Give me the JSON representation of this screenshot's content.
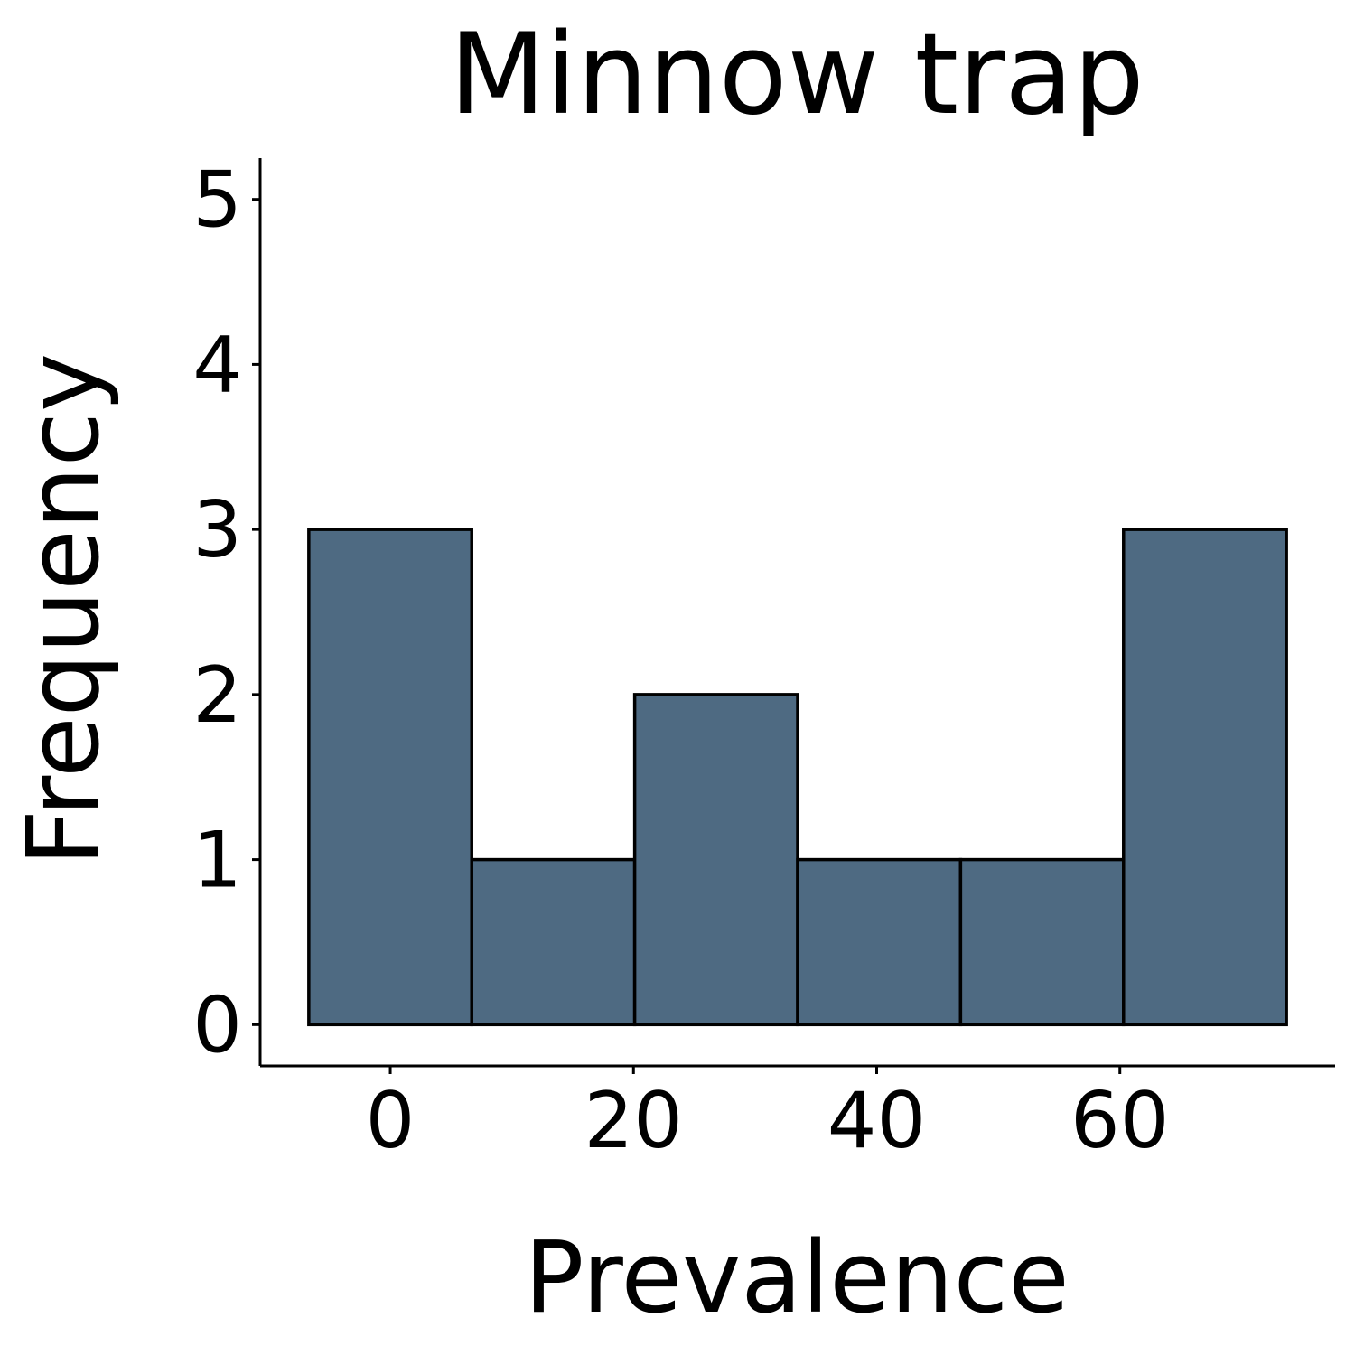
{
  "chart_data": {
    "type": "bar",
    "title": "Minnow trap",
    "xlabel": "Prevalence",
    "ylabel": "Frequency",
    "bin_edges": [
      -6.7,
      6.7,
      20.1,
      33.5,
      46.9,
      60.3,
      73.7
    ],
    "values": [
      3,
      1,
      2,
      1,
      1,
      3
    ],
    "xlim": [
      -10.7,
      77.7
    ],
    "ylim": [
      -0.25,
      5.25
    ],
    "x_ticks": [
      0,
      20,
      40,
      60
    ],
    "y_ticks": [
      0,
      1,
      2,
      3,
      4,
      5
    ],
    "bar_color": "#4e6a82",
    "grid": false,
    "legend": "none"
  }
}
